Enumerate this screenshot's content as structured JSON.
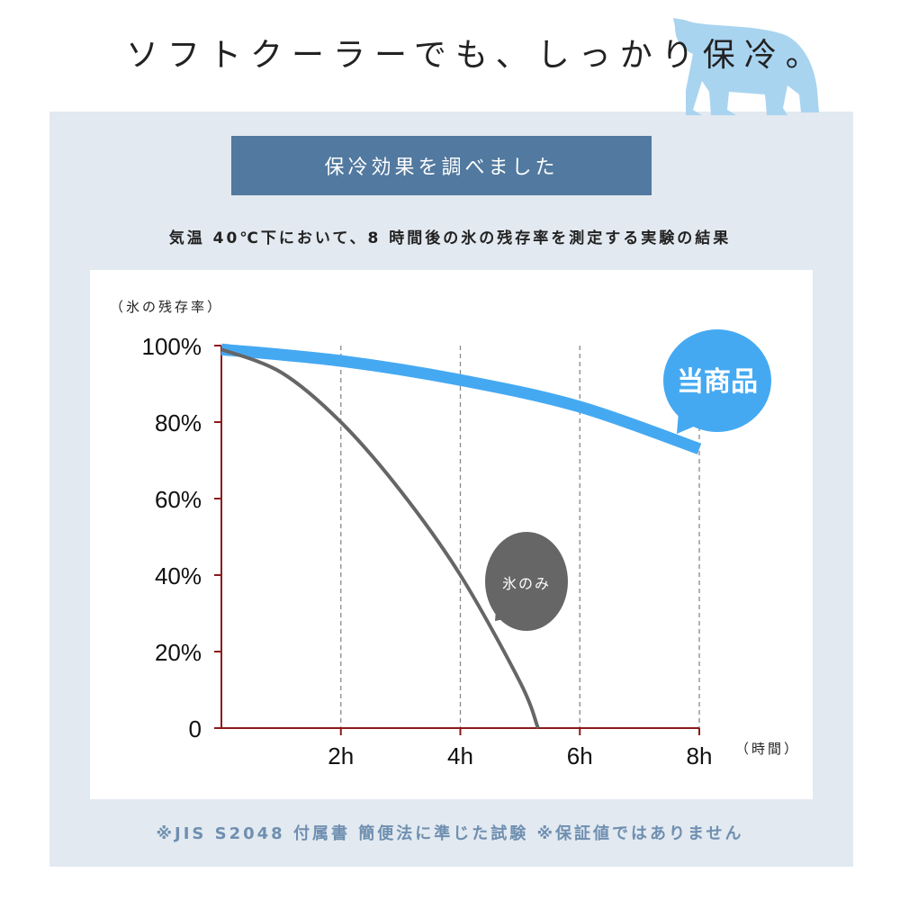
{
  "title": "ソフトクーラーでも、しっかり保冷。",
  "header": "保冷効果を調べました",
  "subtitle": "気温 40℃下において、8 時間後の氷の残存率を測定する実験の結果",
  "footnote": "※JIS S2048 付属書 簡便法に準じた試験 ※保証値ではありません",
  "colors": {
    "panel": "#e2e9f0",
    "header": "#52799f",
    "product": "#45a9f2",
    "ice": "#666666",
    "axis": "#8b1a1a",
    "bear": "#a9d4f0"
  },
  "chart_data": {
    "type": "line",
    "ylabel": "（氷の残存率）",
    "xlabel": "（時間）",
    "x_ticks": [
      "2h",
      "4h",
      "6h",
      "8h"
    ],
    "y_ticks": [
      "0",
      "20%",
      "40%",
      "60%",
      "80%",
      "100%"
    ],
    "xlim": [
      0,
      8
    ],
    "ylim": [
      0,
      100
    ],
    "grid": "vertical dashed",
    "series": [
      {
        "name": "当商品",
        "x": [
          0,
          2,
          4,
          6,
          8
        ],
        "y": [
          99,
          96,
          91,
          84,
          73
        ]
      },
      {
        "name": "氷のみ",
        "x": [
          0,
          1,
          2,
          3,
          4,
          5,
          5.3
        ],
        "y": [
          99,
          93,
          80,
          62,
          40,
          12,
          0
        ]
      }
    ]
  }
}
